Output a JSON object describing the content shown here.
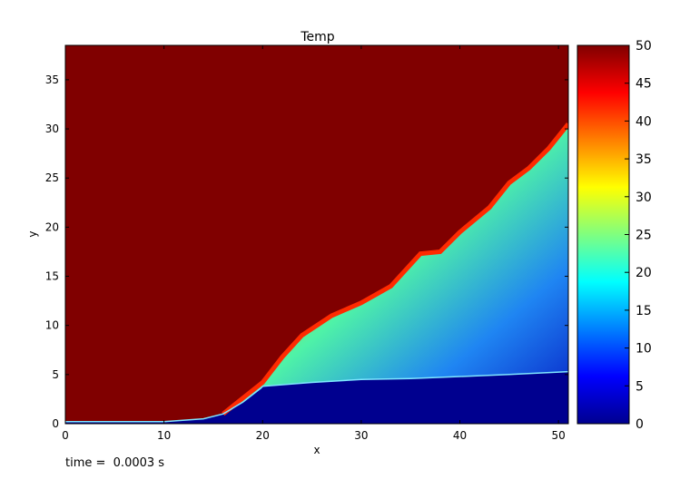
{
  "chart_data": {
    "type": "heatmap",
    "title": "Temp",
    "xlabel": "x",
    "ylabel": "y",
    "xlim": [
      0,
      51
    ],
    "ylim": [
      0,
      38.5
    ],
    "xticks": [
      0,
      10,
      20,
      30,
      40,
      50
    ],
    "yticks": [
      0,
      5,
      10,
      15,
      20,
      25,
      30,
      35
    ],
    "colormap": "jet",
    "color_range": [
      0,
      50
    ],
    "colorbar_ticks": [
      0,
      5,
      10,
      15,
      20,
      25,
      30,
      35,
      40,
      45,
      50
    ],
    "surface_profile_xy": [
      [
        0,
        0.2
      ],
      [
        10,
        0.2
      ],
      [
        14,
        0.5
      ],
      [
        16,
        1.0
      ],
      [
        18,
        2.2
      ],
      [
        19.8,
        3.6
      ],
      [
        20,
        3.8
      ],
      [
        25,
        4.2
      ],
      [
        30,
        4.5
      ],
      [
        35,
        4.6
      ],
      [
        40,
        4.8
      ],
      [
        45,
        5.0
      ],
      [
        51,
        5.3
      ]
    ],
    "flame_front_xy": [
      [
        16,
        1.0
      ],
      [
        18,
        2.6
      ],
      [
        20,
        4.2
      ],
      [
        22,
        6.8
      ],
      [
        24,
        9.0
      ],
      [
        27,
        11.0
      ],
      [
        30,
        12.3
      ],
      [
        33,
        14.0
      ],
      [
        36,
        17.3
      ],
      [
        38,
        17.5
      ],
      [
        40,
        19.5
      ],
      [
        43,
        22.0
      ],
      [
        45,
        24.5
      ],
      [
        47,
        26.0
      ],
      [
        49,
        28.0
      ],
      [
        51,
        30.5
      ]
    ],
    "annotation": "time =  0.0003 s"
  },
  "colors": {
    "hot_background": "#800000",
    "cold_region": "#00008f",
    "frame": "#000000"
  }
}
